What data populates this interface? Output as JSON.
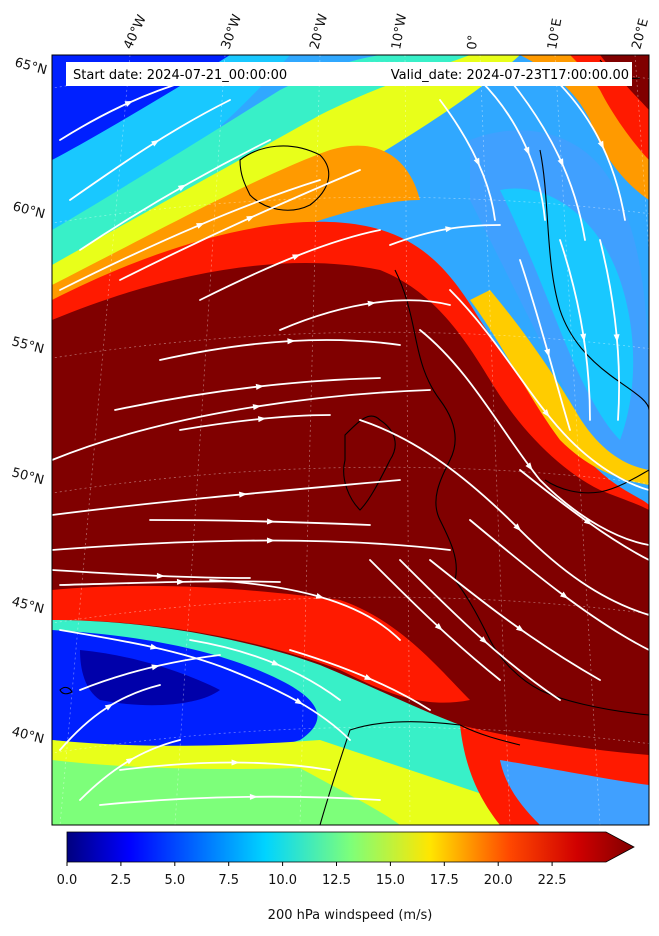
{
  "header": {
    "start_date": "Start date: 2024-07-21_00:00:00",
    "valid_date": "Valid_date: 2024-07-23T17:00:00.00"
  },
  "map": {
    "projection": "conic (Lambert)",
    "field": "200 hPa windspeed",
    "overlay": "streamlines (white)",
    "coastlines": "black",
    "gridlines": "dotted white"
  },
  "longitude_labels": [
    "40°W",
    "30°W",
    "20°W",
    "10°W",
    "0°",
    "10°E",
    "20°E"
  ],
  "latitude_labels": [
    "65°N",
    "60°N",
    "55°N",
    "50°N",
    "45°N",
    "40°N"
  ],
  "colorbar": {
    "label": "200 hPa windspeed (m/s)",
    "ticks": [
      "0.0",
      "2.5",
      "5.0",
      "7.5",
      "10.0",
      "12.5",
      "15.0",
      "17.5",
      "20.0",
      "22.5"
    ],
    "min": 0,
    "max": 25,
    "extend": "max",
    "colormap": "jet"
  },
  "colors": {
    "jet_core": "#800000",
    "jet_red": "#ff1a00",
    "jet_orange": "#ff9a00",
    "jet_yellow": "#e8ff1a",
    "jet_cyan": "#19e6f0",
    "jet_light_blue": "#40a0ff",
    "jet_blue": "#0020ff",
    "jet_navy": "#00007f"
  }
}
